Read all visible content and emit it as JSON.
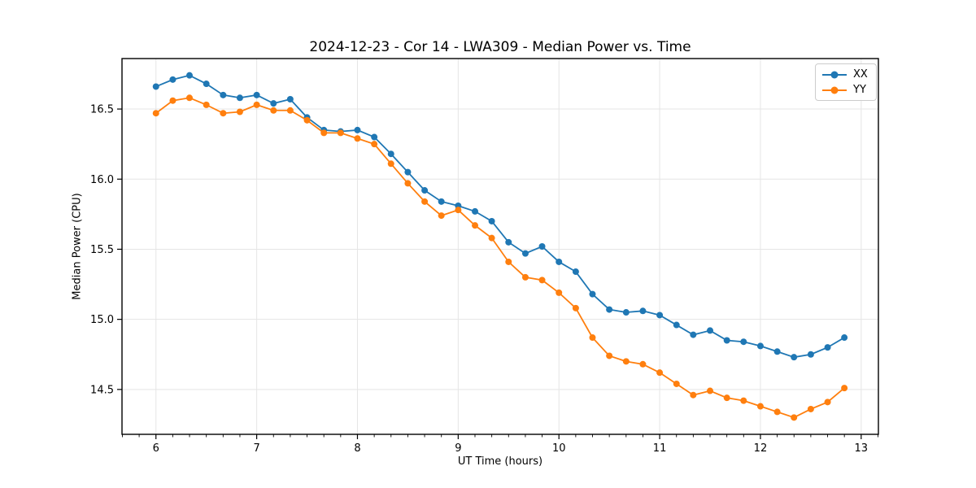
{
  "chart_data": {
    "type": "line",
    "title": "2024-12-23 - Cor 14 - LWA309 - Median Power vs. Time",
    "xlabel": "UT Time (hours)",
    "ylabel": "Median Power (CPU)",
    "xlim": [
      5.663,
      13.171
    ],
    "ylim": [
      14.18,
      16.86
    ],
    "xticks": [
      6,
      7,
      8,
      9,
      10,
      11,
      12,
      13
    ],
    "yticks": [
      14.5,
      15.0,
      15.5,
      16.0,
      16.5
    ],
    "x_minor_step": 0.1666667,
    "grid": true,
    "legend_position": "upper right",
    "grid_color": "#e5e5e5",
    "spine_color": "#000000",
    "x": [
      6.0,
      6.167,
      6.333,
      6.5,
      6.667,
      6.833,
      7.0,
      7.167,
      7.333,
      7.5,
      7.667,
      7.833,
      8.0,
      8.167,
      8.333,
      8.5,
      8.667,
      8.833,
      9.0,
      9.167,
      9.333,
      9.5,
      9.667,
      9.833,
      10.0,
      10.167,
      10.333,
      10.5,
      10.667,
      10.833,
      11.0,
      11.167,
      11.333,
      11.5,
      11.667,
      11.833,
      12.0,
      12.167,
      12.333,
      12.5,
      12.667,
      12.833
    ],
    "series": [
      {
        "name": "XX",
        "color": "#1f77b4",
        "values": [
          16.66,
          16.71,
          16.74,
          16.68,
          16.6,
          16.58,
          16.6,
          16.54,
          16.57,
          16.44,
          16.35,
          16.34,
          16.35,
          16.3,
          16.18,
          16.05,
          15.92,
          15.84,
          15.81,
          15.77,
          15.7,
          15.55,
          15.47,
          15.52,
          15.41,
          15.34,
          15.18,
          15.07,
          15.05,
          15.06,
          15.03,
          14.96,
          14.89,
          14.92,
          14.85,
          14.84,
          14.81,
          14.77,
          14.73,
          14.75,
          14.8,
          14.87
        ]
      },
      {
        "name": "YY",
        "color": "#ff7f0e",
        "values": [
          16.47,
          16.56,
          16.58,
          16.53,
          16.47,
          16.48,
          16.53,
          16.49,
          16.49,
          16.42,
          16.33,
          16.33,
          16.29,
          16.25,
          16.11,
          15.97,
          15.84,
          15.74,
          15.78,
          15.67,
          15.58,
          15.41,
          15.3,
          15.28,
          15.19,
          15.08,
          14.87,
          14.74,
          14.7,
          14.68,
          14.62,
          14.54,
          14.46,
          14.49,
          14.44,
          14.42,
          14.38,
          14.34,
          14.3,
          14.36,
          14.41,
          14.51
        ]
      }
    ]
  }
}
